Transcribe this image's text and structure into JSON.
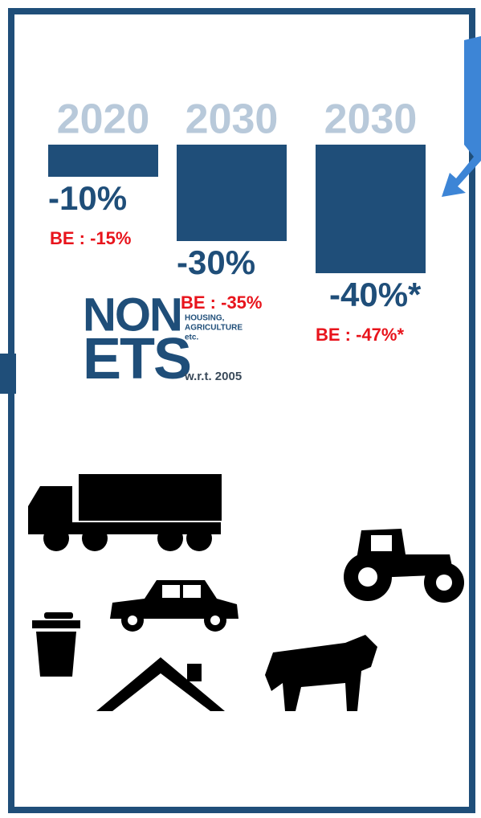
{
  "chart_data": {
    "type": "bar",
    "categories": [
      "2020",
      "2030",
      "2030"
    ],
    "values": [
      -10,
      -30,
      -40
    ],
    "value_labels": [
      "-10%",
      "-30%",
      "-40%*"
    ],
    "be_labels": [
      "BE : -15%",
      "BE : -35%",
      "BE : -47%*"
    ],
    "color": "#1f4e79"
  },
  "legend_block": {
    "title_top": "NON",
    "title_bottom": "ETS",
    "sectors": [
      "HOUSING,",
      "AGRICULTURE",
      "etc."
    ],
    "reference": "w.r.t. 2005"
  }
}
